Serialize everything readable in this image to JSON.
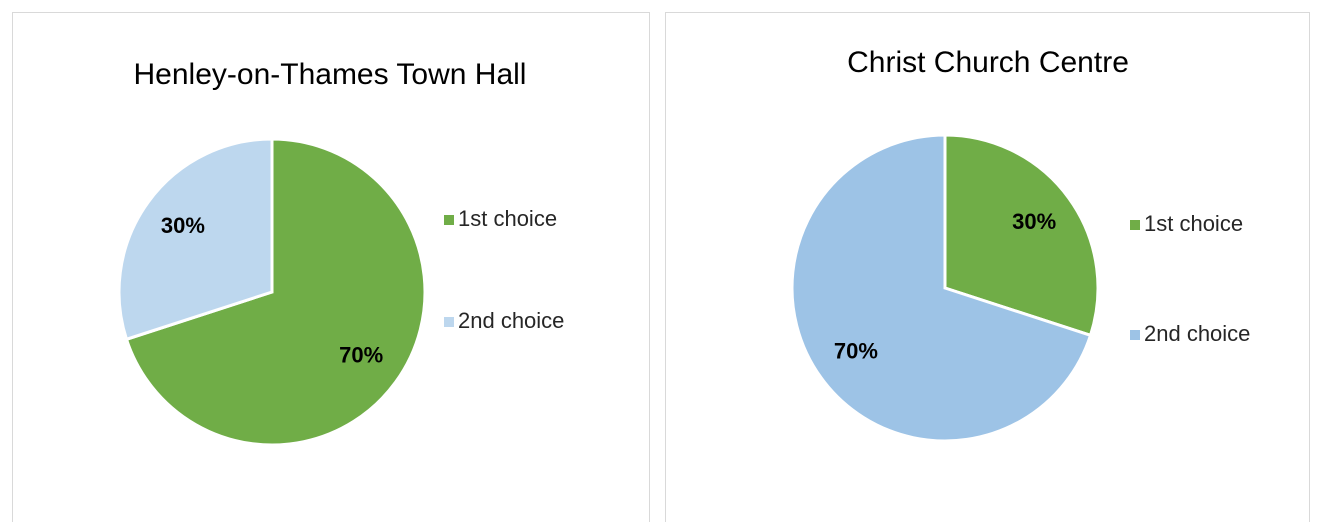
{
  "chart_data": [
    {
      "type": "pie",
      "title": "Henley-on-Thames Town Hall",
      "categories": [
        "1st choice",
        "2nd choice"
      ],
      "values": [
        70,
        30
      ],
      "value_labels": [
        "70%",
        "30%"
      ],
      "colors": [
        "#70ad47",
        "#bdd7ee"
      ]
    },
    {
      "type": "pie",
      "title": "Christ Church Centre",
      "categories": [
        "1st choice",
        "2nd choice"
      ],
      "values": [
        30,
        70
      ],
      "value_labels": [
        "30%",
        "70%"
      ],
      "colors": [
        "#70ad47",
        "#9dc3e6"
      ]
    }
  ]
}
